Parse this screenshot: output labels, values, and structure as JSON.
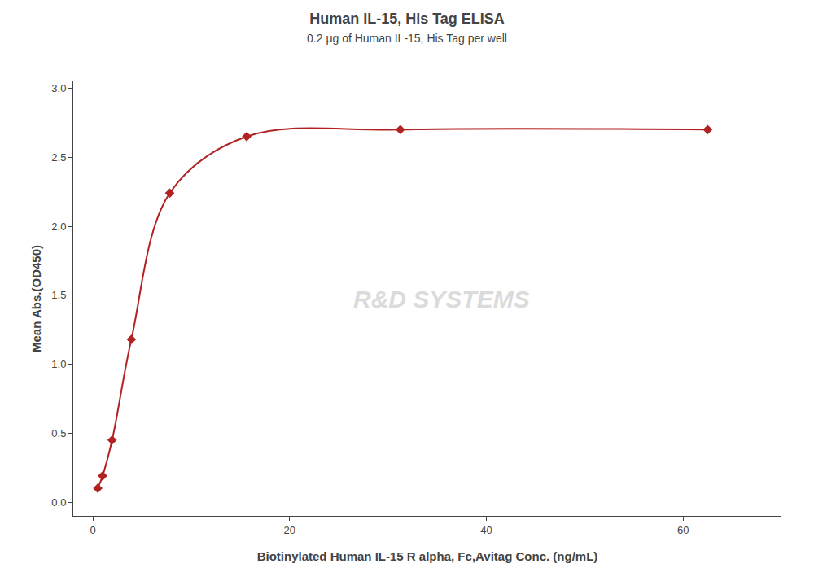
{
  "chart_data": {
    "type": "line",
    "title": "Human IL-15, His Tag ELISA",
    "subtitle": "0.2 μg of Human IL-15, His Tag per well",
    "xlabel": "Biotinylated Human IL-15 R alpha, Fc,Avitag Conc. (ng/mL)",
    "ylabel": "Mean Abs.(OD450)",
    "x": [
      0.49,
      0.98,
      1.95,
      3.91,
      7.81,
      15.63,
      31.25,
      62.5
    ],
    "values": [
      0.1,
      0.19,
      0.45,
      1.18,
      2.24,
      2.65,
      2.7,
      2.7
    ],
    "color": "#b22222",
    "marker": "diamond",
    "line_style": "solid",
    "xlim": [
      -2,
      70
    ],
    "ylim": [
      -0.1,
      3.05
    ],
    "xticks": [
      0,
      20,
      40,
      60
    ],
    "yticks": [
      {
        "value": 0.0,
        "label": "0.0"
      },
      0.5,
      {
        "value": 1.0,
        "label": "1.0"
      },
      1.5,
      {
        "value": 2.0,
        "label": "2.0"
      },
      2.5,
      {
        "value": 3.0,
        "label": "3.0"
      }
    ],
    "annotations": [
      "R&D SYSTEMS"
    ],
    "grid": false
  }
}
